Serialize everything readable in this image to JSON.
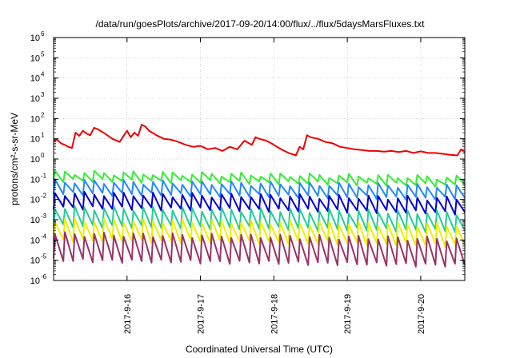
{
  "chart_data": {
    "type": "line",
    "title": "/data/run/goesPlots/archive/2017-09-20/14:00/flux/../flux/5daysMarsFluxes.txt",
    "xlabel": "Coordinated Universal Time (UTC)",
    "ylabel": "protons/cm²-s-sr-MeV",
    "y_scale": "log",
    "ylim": [
      1e-06,
      1000000.0
    ],
    "y_ticks": [
      {
        "base": "10",
        "exp": "-6",
        "value": 1e-06
      },
      {
        "base": "10",
        "exp": "-5",
        "value": 1e-05
      },
      {
        "base": "10",
        "exp": "-4",
        "value": 0.0001
      },
      {
        "base": "10",
        "exp": "-3",
        "value": 0.001
      },
      {
        "base": "10",
        "exp": "-2",
        "value": 0.01
      },
      {
        "base": "10",
        "exp": "-1",
        "value": 0.1
      },
      {
        "base": "10",
        "exp": "0",
        "value": 1
      },
      {
        "base": "10",
        "exp": "1",
        "value": 10
      },
      {
        "base": "10",
        "exp": "2",
        "value": 100
      },
      {
        "base": "10",
        "exp": "3",
        "value": 1000
      },
      {
        "base": "10",
        "exp": "4",
        "value": 10000
      },
      {
        "base": "10",
        "exp": "5",
        "value": 100000
      },
      {
        "base": "10",
        "exp": "6",
        "value": 1000000
      }
    ],
    "x_ticks": [
      "2017-9-16",
      "2017-9-17",
      "2017-9-18",
      "2017-9-19",
      "2017-9-20"
    ],
    "xlim_days": [
      15.0,
      20.6
    ],
    "grid": true,
    "legend": "none",
    "series": [
      {
        "color": "#ee0000",
        "x": [
          15.0,
          15.05,
          15.1,
          15.15,
          15.2,
          15.25,
          15.3,
          15.35,
          15.4,
          15.45,
          15.5,
          15.55,
          15.6,
          15.7,
          15.8,
          15.9,
          16.0,
          16.05,
          16.1,
          16.15,
          16.2,
          16.25,
          16.3,
          16.4,
          16.5,
          16.6,
          16.7,
          16.8,
          16.9,
          17.0,
          17.1,
          17.2,
          17.3,
          17.4,
          17.5,
          17.6,
          17.7,
          17.75,
          17.8,
          17.9,
          18.0,
          18.1,
          18.2,
          18.3,
          18.35,
          18.4,
          18.45,
          18.5,
          18.6,
          18.7,
          18.8,
          18.9,
          19.0,
          19.1,
          19.2,
          19.3,
          19.4,
          19.5,
          19.6,
          19.7,
          19.8,
          19.9,
          20.0,
          20.1,
          20.2,
          20.3,
          20.4,
          20.5,
          20.55,
          20.6
        ],
        "y": [
          8,
          9,
          6,
          5,
          4,
          3.5,
          20,
          14,
          25,
          18,
          15,
          35,
          30,
          18,
          10,
          7,
          25,
          12,
          20,
          14,
          50,
          40,
          25,
          15,
          10,
          9,
          7,
          5,
          4,
          4.5,
          3,
          3.5,
          2.5,
          4,
          3,
          8,
          5,
          12,
          10,
          8,
          5,
          3,
          2,
          1.5,
          4,
          3,
          15,
          12,
          10,
          7,
          6,
          4,
          3.5,
          3,
          2.8,
          2.5,
          2.5,
          2.3,
          2.5,
          2.2,
          2.5,
          2,
          2.4,
          2,
          2,
          1.8,
          1.6,
          1.5,
          3,
          2.2
        ]
      },
      {
        "color": "#33ee33",
        "peaks": 0.22,
        "troughs": 0.09,
        "decay": 0.55,
        "cycles": 42
      },
      {
        "color": "#2288ff",
        "peaks": 0.08,
        "troughs": 0.02,
        "decay": 0.5,
        "cycles": 42
      },
      {
        "color": "#0000cc",
        "peaks": 0.02,
        "troughs": 0.004,
        "decay": 0.5,
        "cycles": 42
      },
      {
        "color": "#22cc99",
        "peaks": 0.004,
        "troughs": 0.0005,
        "decay": 0.5,
        "cycles": 42
      },
      {
        "color": "#eeee00",
        "peaks": 0.001,
        "troughs": 0.0001,
        "decay": 0.5,
        "cycles": 42
      },
      {
        "color": "#993366",
        "peaks": 0.0002,
        "troughs": 1e-05,
        "decay": 0.5,
        "cycles": 42
      }
    ]
  }
}
